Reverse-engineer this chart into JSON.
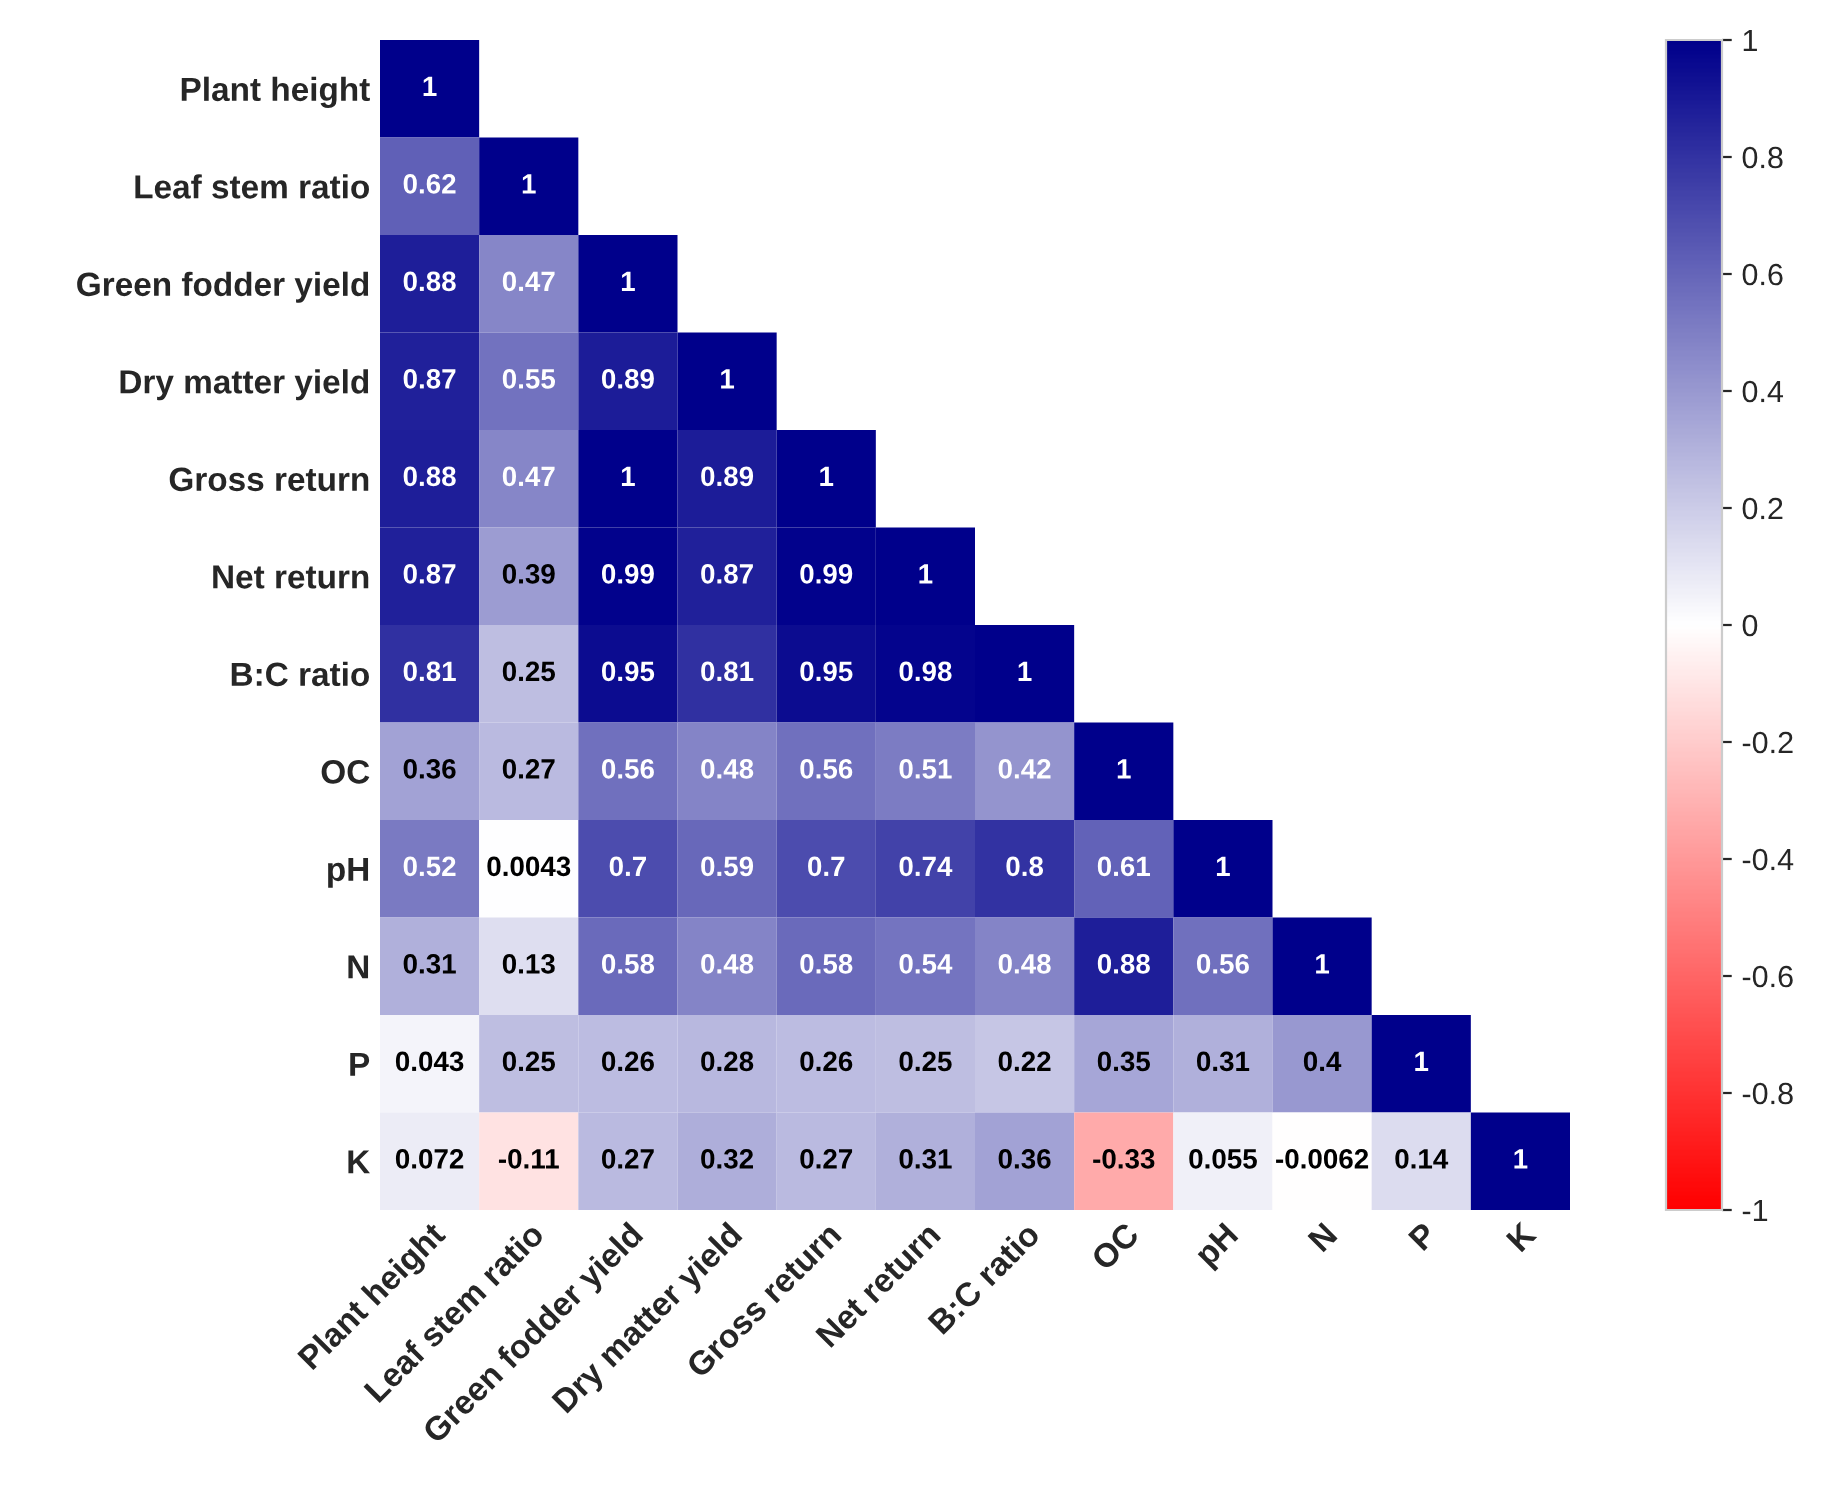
{
  "chart_data": {
    "type": "heatmap",
    "categories": [
      "Plant height",
      "Leaf stem ratio",
      "Green fodder yield",
      "Dry matter yield",
      "Gross return",
      "Net return",
      "B:C ratio",
      "OC",
      "pH",
      "N",
      "P",
      "K"
    ],
    "y_categories": [
      "Plant height",
      "Leaf stem ratio",
      "Green fodder yield",
      "Dry matter yield",
      "Gross return",
      "Net return",
      "B:C ratio",
      "OC",
      "pH",
      "N",
      "P",
      "K"
    ],
    "cells": [
      [
        1,
        null,
        null,
        null,
        null,
        null,
        null,
        null,
        null,
        null,
        null,
        null
      ],
      [
        0.62,
        1,
        null,
        null,
        null,
        null,
        null,
        null,
        null,
        null,
        null,
        null
      ],
      [
        0.88,
        0.47,
        1,
        null,
        null,
        null,
        null,
        null,
        null,
        null,
        null,
        null
      ],
      [
        0.87,
        0.55,
        0.89,
        1,
        null,
        null,
        null,
        null,
        null,
        null,
        null,
        null
      ],
      [
        0.88,
        0.47,
        1,
        0.89,
        1,
        null,
        null,
        null,
        null,
        null,
        null,
        null
      ],
      [
        0.87,
        0.39,
        0.99,
        0.87,
        0.99,
        1,
        null,
        null,
        null,
        null,
        null,
        null
      ],
      [
        0.81,
        0.25,
        0.95,
        0.81,
        0.95,
        0.98,
        1,
        null,
        null,
        null,
        null,
        null
      ],
      [
        0.36,
        0.27,
        0.56,
        0.48,
        0.56,
        0.51,
        0.42,
        1,
        null,
        null,
        null,
        null
      ],
      [
        0.52,
        0.0043,
        0.7,
        0.59,
        0.7,
        0.74,
        0.8,
        0.61,
        1,
        null,
        null,
        null
      ],
      [
        0.31,
        0.13,
        0.58,
        0.48,
        0.58,
        0.54,
        0.48,
        0.88,
        0.56,
        1,
        null,
        null
      ],
      [
        0.043,
        0.25,
        0.26,
        0.28,
        0.26,
        0.25,
        0.22,
        0.35,
        0.31,
        0.4,
        1,
        null
      ],
      [
        0.072,
        -0.11,
        0.27,
        0.32,
        0.27,
        0.31,
        0.36,
        -0.33,
        0.055,
        -0.0062,
        0.14,
        1
      ]
    ],
    "clim": [
      -1,
      1
    ],
    "cticks": [
      -1,
      -0.8,
      -0.6,
      -0.4,
      -0.2,
      0,
      0.2,
      0.4,
      0.6,
      0.8,
      1
    ],
    "data_labels": true
  }
}
